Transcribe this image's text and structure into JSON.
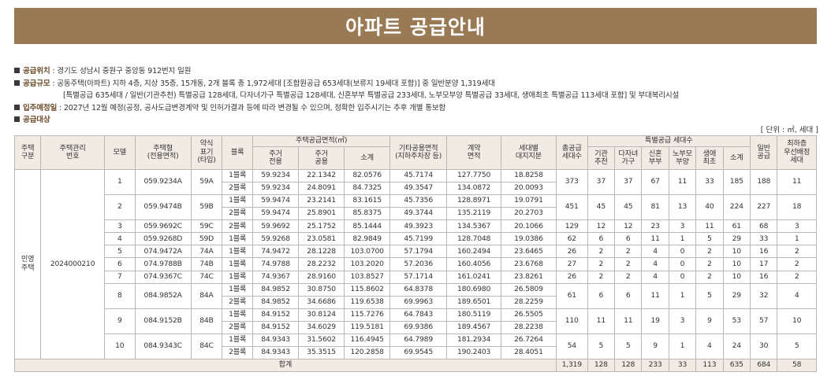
{
  "title": "아파트 공급안내",
  "info": {
    "location_label": "공급위치",
    "location_text": "경기도 성남시 중원구 중앙동 912번지 일원",
    "scale_label": "공급규모",
    "scale_text1": "공동주택(아파트) 지하 4층, 지상 35층, 15개동, 2개 블록 총 1,972세대 [조합원공급 653세대(보류지 19세대 포함)] 중 일반분양 1,319세대",
    "scale_text2": "[특별공급 635세대 / 일반(기관추천) 특별공급 128세대, 다자녀가구 특별공급 128세대, 신혼부부 특별공급 233세대, 노부모부양 특별공급 33세대, 생애최초 특별공급 113세대 포함] 및 부대복리시설",
    "move_label": "입주예정일",
    "move_text": "2027년 12월 예정(공정, 공사도급변경계약 및 인허가결과 등에 따라 변경될 수 있으며, 정확한 입주시기는 추후 개별 통보함",
    "target_label": "공급대상"
  },
  "unit": "[ 단위 : ㎡, 세대 ]",
  "header": {
    "housing_type": "주택\n구분",
    "mgmt_no": "주택관리\n번호",
    "model": "모델",
    "house_type": "주택형\n(전용면적)",
    "short_type": "약식\n표기\n(타입)",
    "block": "블록",
    "supply_area": "주택공급면적(㎡)",
    "exclusive": "주거\n전용",
    "common": "주거\n공용",
    "subtotal": "소계",
    "other_common": "기타공용면적\n(지하주차장 등)",
    "contract_area": "계약\n면적",
    "land_share": "세대별\n대지지분",
    "total_supply": "총공급\n세대수",
    "special": "특별공급 세대수",
    "institution": "기관\n추천",
    "multichild": "다자녀\n가구",
    "newlywed": "신혼\n부부",
    "elderly": "노부모\n부양",
    "firsttime": "생애\n최초",
    "special_subtotal": "소계",
    "general": "일반\n공급",
    "priority": "최하층\n우선배정\n세대"
  },
  "housing_type_value": "민영\n주택",
  "mgmt_no_value": "2024000210",
  "models": [
    {
      "model": "1",
      "type": "059.9234A",
      "short": "59A",
      "total": "373",
      "inst": "37",
      "multi": "37",
      "newly": "67",
      "elder": "11",
      "first": "33",
      "sub": "185",
      "general": "188",
      "priority": "11",
      "blocks": [
        {
          "block": "1블록",
          "exclusive": "59.9234",
          "common": "22.1342",
          "subtotal": "82.0576",
          "other": "45.7174",
          "contract": "127.7750",
          "land": "18.8258"
        },
        {
          "block": "2블록",
          "exclusive": "59.9234",
          "common": "24.8091",
          "subtotal": "84.7325",
          "other": "49.3547",
          "contract": "134.0872",
          "land": "20.0093"
        }
      ]
    },
    {
      "model": "2",
      "type": "059.9474B",
      "short": "59B",
      "total": "451",
      "inst": "45",
      "multi": "45",
      "newly": "81",
      "elder": "13",
      "first": "40",
      "sub": "224",
      "general": "227",
      "priority": "18",
      "blocks": [
        {
          "block": "1블록",
          "exclusive": "59.9474",
          "common": "23.2141",
          "subtotal": "83.1615",
          "other": "45.7356",
          "contract": "128.8971",
          "land": "19.0791"
        },
        {
          "block": "2블록",
          "exclusive": "59.9474",
          "common": "25.8901",
          "subtotal": "85.8375",
          "other": "49.3744",
          "contract": "135.2119",
          "land": "20.2703"
        }
      ]
    },
    {
      "model": "3",
      "type": "059.9692C",
      "short": "59C",
      "total": "129",
      "inst": "12",
      "multi": "12",
      "newly": "23",
      "elder": "3",
      "first": "11",
      "sub": "61",
      "general": "68",
      "priority": "3",
      "blocks": [
        {
          "block": "2블록",
          "exclusive": "59.9692",
          "common": "25.1752",
          "subtotal": "85.1444",
          "other": "49.3923",
          "contract": "134.5367",
          "land": "20.1066"
        }
      ]
    },
    {
      "model": "4",
      "type": "059.9268D",
      "short": "59D",
      "total": "62",
      "inst": "6",
      "multi": "6",
      "newly": "11",
      "elder": "1",
      "first": "5",
      "sub": "29",
      "general": "33",
      "priority": "1",
      "blocks": [
        {
          "block": "1블록",
          "exclusive": "59.9268",
          "common": "23.0581",
          "subtotal": "82.9849",
          "other": "45.7199",
          "contract": "128.7048",
          "land": "19.0386"
        }
      ]
    },
    {
      "model": "5",
      "type": "074.9472A",
      "short": "74A",
      "total": "26",
      "inst": "2",
      "multi": "2",
      "newly": "4",
      "elder": "0",
      "first": "2",
      "sub": "10",
      "general": "16",
      "priority": "2",
      "blocks": [
        {
          "block": "1블록",
          "exclusive": "74.9472",
          "common": "28.1228",
          "subtotal": "103.0700",
          "other": "57.1794",
          "contract": "160.2494",
          "land": "23.6465"
        }
      ]
    },
    {
      "model": "6",
      "type": "074.9788B",
      "short": "74B",
      "total": "27",
      "inst": "2",
      "multi": "2",
      "newly": "4",
      "elder": "0",
      "first": "2",
      "sub": "10",
      "general": "17",
      "priority": "2",
      "blocks": [
        {
          "block": "1블록",
          "exclusive": "74.9788",
          "common": "28.2232",
          "subtotal": "103.2020",
          "other": "57.2036",
          "contract": "160.4056",
          "land": "23.6768"
        }
      ]
    },
    {
      "model": "7",
      "type": "074.9367C",
      "short": "74C",
      "total": "26",
      "inst": "2",
      "multi": "2",
      "newly": "4",
      "elder": "0",
      "first": "2",
      "sub": "10",
      "general": "16",
      "priority": "2",
      "blocks": [
        {
          "block": "1블록",
          "exclusive": "74.9367",
          "common": "28.9160",
          "subtotal": "103.8527",
          "other": "57.1714",
          "contract": "161.0241",
          "land": "23.8261"
        }
      ]
    },
    {
      "model": "8",
      "type": "084.9852A",
      "short": "84A",
      "total": "61",
      "inst": "6",
      "multi": "6",
      "newly": "11",
      "elder": "1",
      "first": "5",
      "sub": "29",
      "general": "32",
      "priority": "4",
      "blocks": [
        {
          "block": "1블록",
          "exclusive": "84.9852",
          "common": "30.8750",
          "subtotal": "115.8602",
          "other": "64.8378",
          "contract": "180.6980",
          "land": "26.5809"
        },
        {
          "block": "2블록",
          "exclusive": "84.9852",
          "common": "34.6686",
          "subtotal": "119.6538",
          "other": "69.9963",
          "contract": "189.6501",
          "land": "28.2259"
        }
      ]
    },
    {
      "model": "9",
      "type": "084.9152B",
      "short": "84B",
      "total": "110",
      "inst": "11",
      "multi": "11",
      "newly": "19",
      "elder": "3",
      "first": "9",
      "sub": "53",
      "general": "57",
      "priority": "10",
      "blocks": [
        {
          "block": "1블록",
          "exclusive": "84.9152",
          "common": "30.8124",
          "subtotal": "115.7276",
          "other": "64.7843",
          "contract": "180.5119",
          "land": "26.5505"
        },
        {
          "block": "2블록",
          "exclusive": "84.9152",
          "common": "34.6029",
          "subtotal": "119.5181",
          "other": "69.9386",
          "contract": "189.4567",
          "land": "28.2238"
        }
      ]
    },
    {
      "model": "10",
      "type": "084.9343C",
      "short": "84C",
      "total": "54",
      "inst": "5",
      "multi": "5",
      "newly": "9",
      "elder": "1",
      "first": "4",
      "sub": "24",
      "general": "30",
      "priority": "5",
      "blocks": [
        {
          "block": "1블록",
          "exclusive": "84.9343",
          "common": "31.5602",
          "subtotal": "116.4945",
          "other": "64.7989",
          "contract": "181.2934",
          "land": "26.7264"
        },
        {
          "block": "2블록",
          "exclusive": "84.9343",
          "common": "35.3515",
          "subtotal": "120.2858",
          "other": "69.9545",
          "contract": "190.2403",
          "land": "28.4051"
        }
      ]
    }
  ],
  "totals": {
    "label": "합계",
    "total": "1,319",
    "inst": "128",
    "multi": "128",
    "newly": "233",
    "elder": "33",
    "first": "113",
    "sub": "635",
    "general": "684",
    "priority": "58"
  }
}
